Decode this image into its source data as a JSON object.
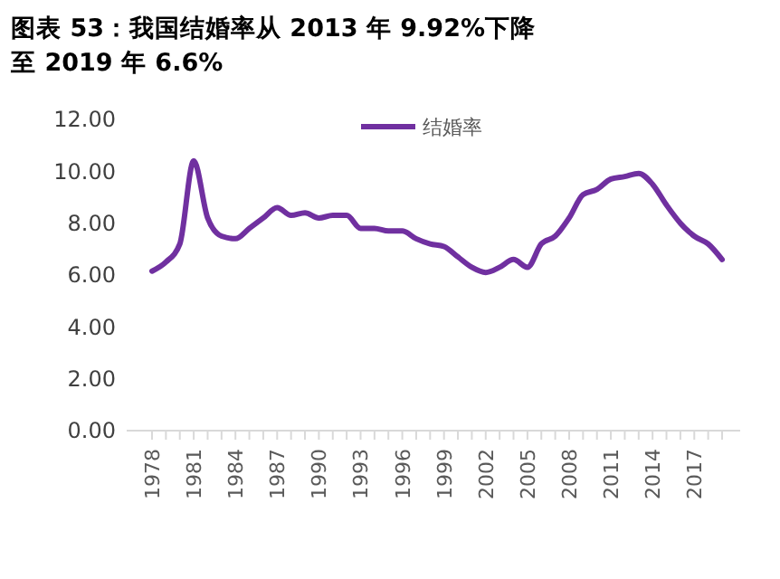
{
  "chart_data": {
    "type": "line",
    "title": "图表 53：我国结婚率从 2013 年 9.92%下降至 2019 年 6.6%",
    "categories": [
      "1978",
      null,
      null,
      "1981",
      null,
      null,
      "1984",
      null,
      null,
      "1987",
      null,
      null,
      "1990",
      null,
      null,
      "1993",
      null,
      null,
      "1996",
      null,
      null,
      "1999",
      null,
      null,
      "2002",
      null,
      null,
      "2005",
      null,
      null,
      "2008",
      null,
      null,
      "2011",
      null,
      null,
      "2014",
      null,
      null,
      "2017",
      null,
      null
    ],
    "series": [
      {
        "name": "结婚率",
        "color": "#7030a0",
        "values": [
          6.15,
          6.5,
          7.2,
          10.4,
          8.2,
          7.5,
          7.4,
          7.8,
          8.2,
          8.6,
          8.3,
          8.4,
          8.2,
          8.3,
          8.3,
          7.8,
          7.8,
          7.7,
          7.7,
          7.4,
          7.2,
          7.1,
          6.7,
          6.3,
          6.1,
          6.3,
          6.6,
          6.3,
          7.2,
          7.5,
          8.2,
          9.1,
          9.3,
          9.7,
          9.8,
          9.92,
          9.5,
          8.7,
          8.0,
          7.5,
          7.2,
          6.6
        ]
      }
    ],
    "ylim": [
      0,
      12
    ],
    "yticks": [
      {
        "value": 0,
        "label": "0.00"
      },
      {
        "value": 2,
        "label": "2.00"
      },
      {
        "value": 4,
        "label": "4.00"
      },
      {
        "value": 6,
        "label": "6.00"
      },
      {
        "value": 8,
        "label": "8.00"
      },
      {
        "value": 10,
        "label": "10.00"
      },
      {
        "value": 12,
        "label": "12.00"
      }
    ],
    "grid": false,
    "legend": "top",
    "marker": "none",
    "line_style": "solid"
  }
}
